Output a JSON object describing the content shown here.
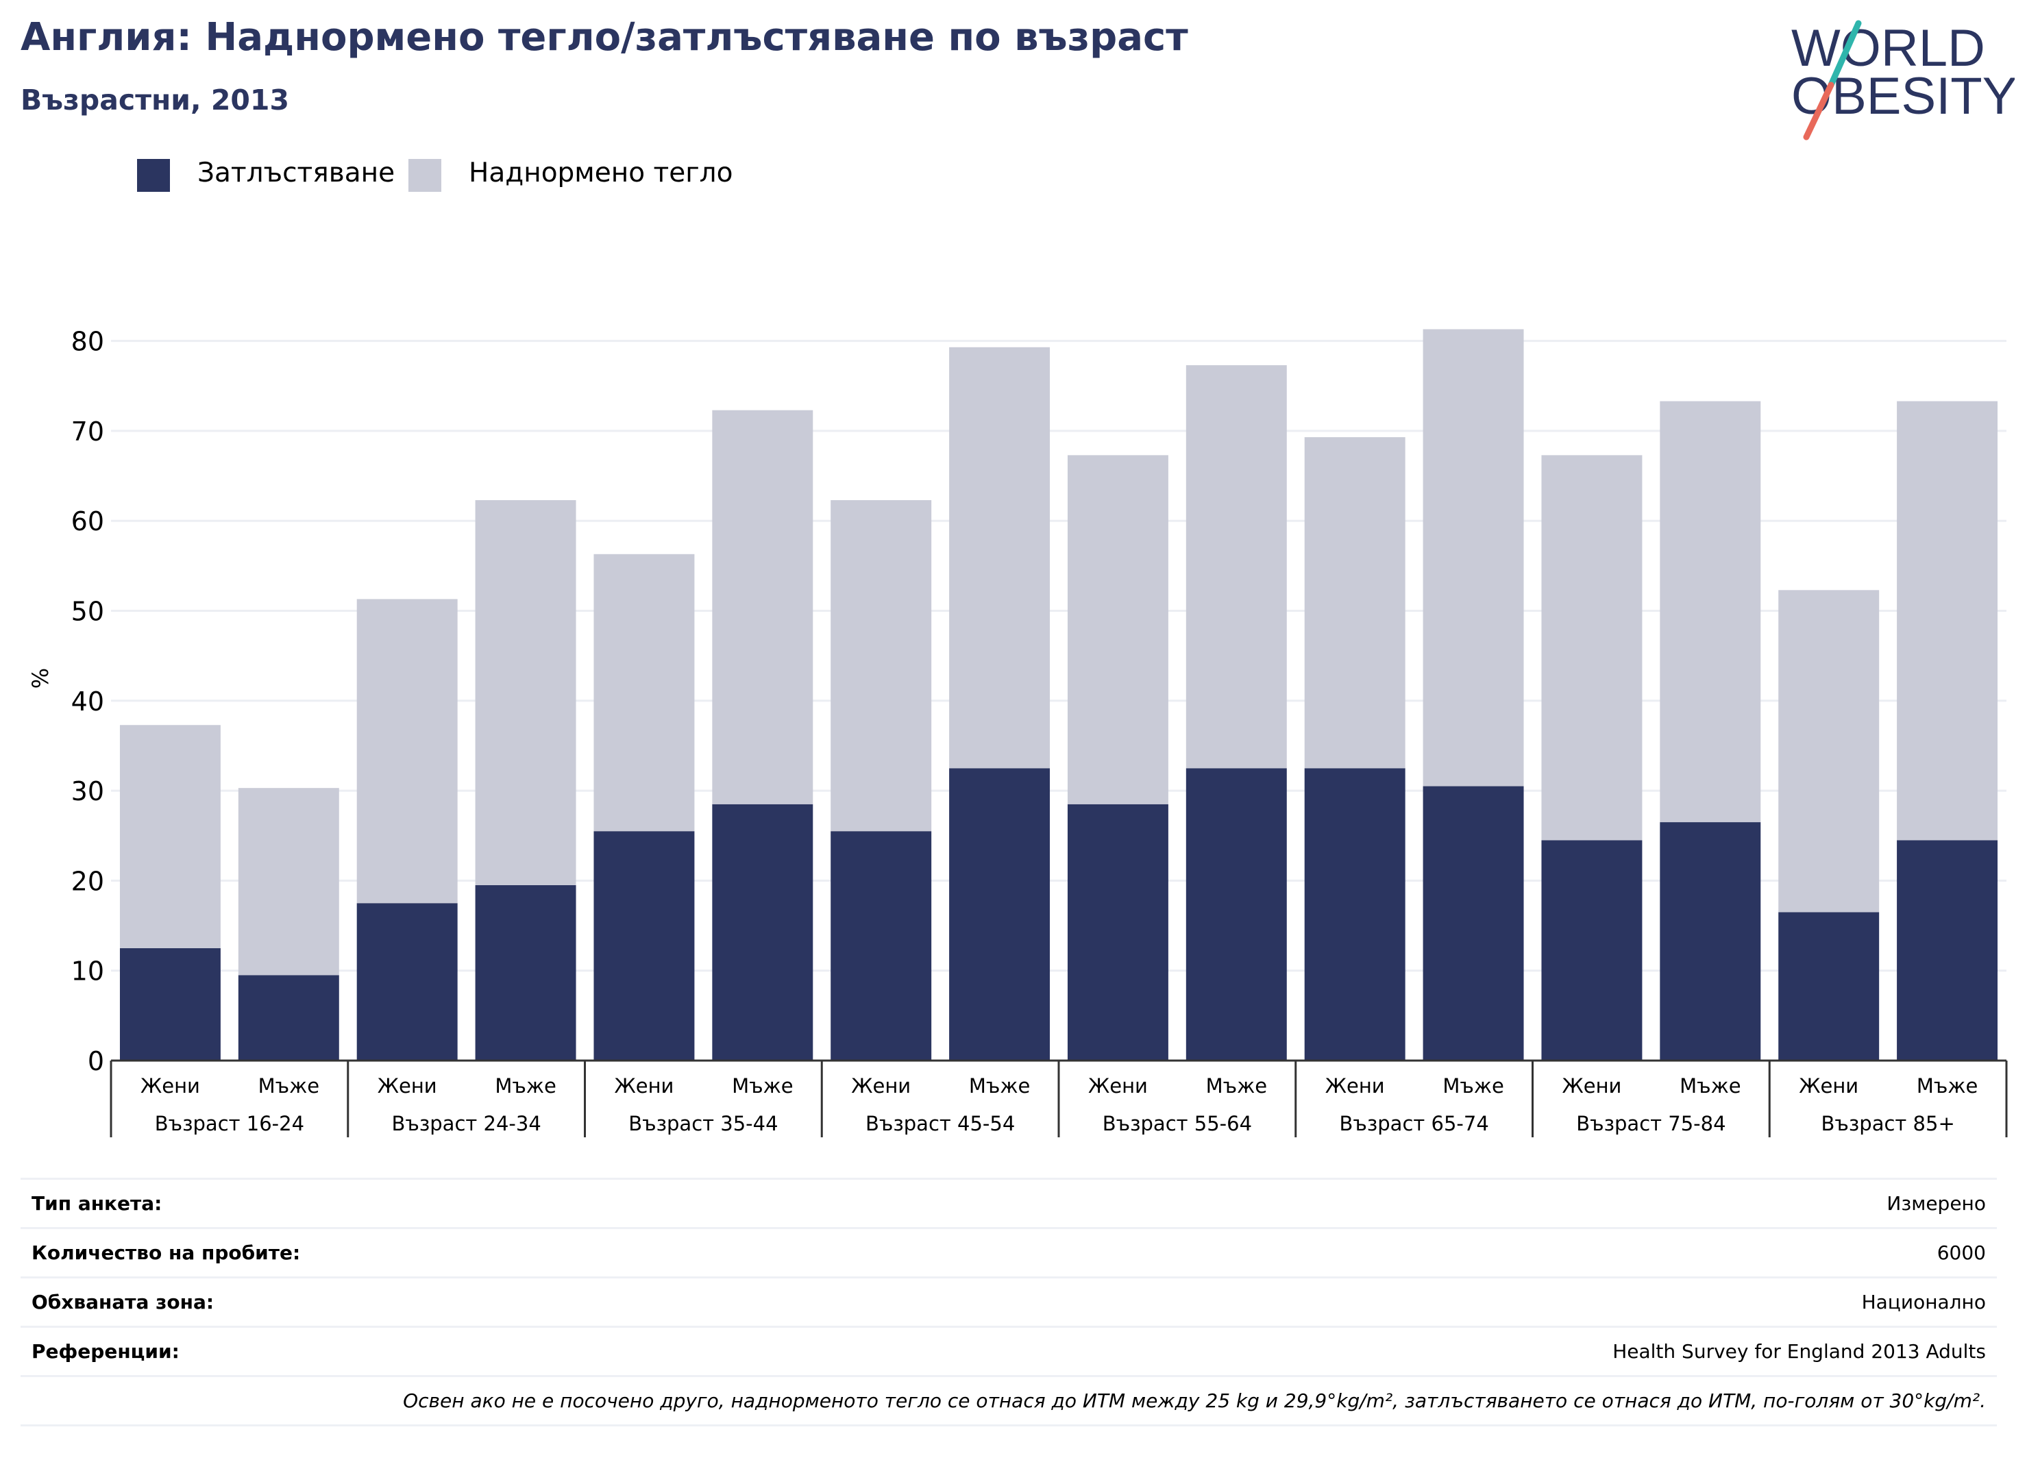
{
  "header": {
    "title": "Англия: Наднормено тегло/затлъстяване по възраст",
    "subtitle": "Възрастни, 2013"
  },
  "logo": {
    "line1": "WORLD",
    "line2": "OBESITY"
  },
  "colors": {
    "obesity": "#2b3560",
    "overweight": "#c9cbd7",
    "title": "#2b3560",
    "logo_text": "#2b3560",
    "logo_slash_teal": "#2fb5ac",
    "logo_slash_coral": "#e8695a"
  },
  "chart_data": {
    "type": "bar",
    "stacked": true,
    "ylabel": "%",
    "ylim": [
      0,
      85
    ],
    "yticks": [
      0,
      10,
      20,
      30,
      40,
      50,
      60,
      70,
      80
    ],
    "grid": true,
    "legend": {
      "position": "top-left"
    },
    "groups": [
      "Възраст 16-24",
      "Възраст 24-34",
      "Възраст 35-44",
      "Възраст 45-54",
      "Възраст 55-64",
      "Възраст 65-74",
      "Възраст 75-84",
      "Възраст 85+"
    ],
    "sexes": [
      "Жени",
      "Мъже"
    ],
    "series": [
      {
        "name": "Затлъстяване",
        "color": "#2b3560",
        "values": [
          12.5,
          9.5,
          17.5,
          19.5,
          25.5,
          28.5,
          25.5,
          32.5,
          28.5,
          32.5,
          32.5,
          30.5,
          24.5,
          26.5,
          16.5,
          24.5
        ]
      },
      {
        "name": "Наднормено тегло",
        "color": "#c9cbd7",
        "values": [
          24.8,
          20.8,
          33.8,
          42.8,
          30.8,
          43.8,
          36.8,
          46.8,
          38.8,
          44.8,
          36.8,
          50.8,
          42.8,
          46.8,
          35.8,
          48.8
        ]
      }
    ]
  },
  "info": {
    "rows": [
      {
        "label": "Тип анкета:",
        "value": "Измерено"
      },
      {
        "label": "Количество на пробите:",
        "value": "6000"
      },
      {
        "label": "Обхваната зона:",
        "value": "Национално"
      },
      {
        "label": "Референции:",
        "value": "Health Survey for England 2013 Adults"
      }
    ],
    "note": "Освен ако не е посочено друго, наднорменото тегло се отнася до ИТМ между 25 kg и 29,9°kg/m², затлъстяването се отнася до ИТМ, по-голям от 30°kg/m²."
  }
}
